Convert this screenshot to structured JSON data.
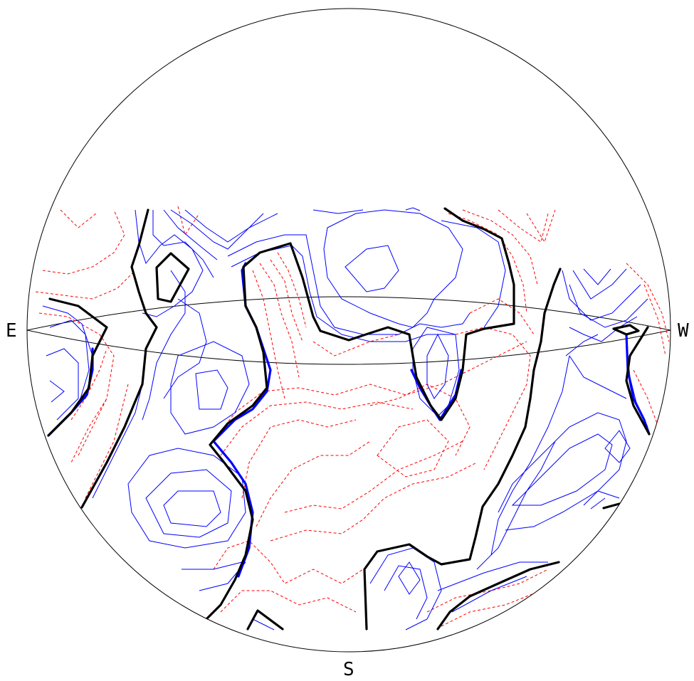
{
  "labels": {
    "east": "E",
    "west": "W",
    "south": "S"
  },
  "colors": {
    "background": "#ffffff",
    "outline": "#000000",
    "positive_contour": "#0000ff",
    "negative_contour": "#ff0000",
    "zero_contour": "#000000"
  }
}
